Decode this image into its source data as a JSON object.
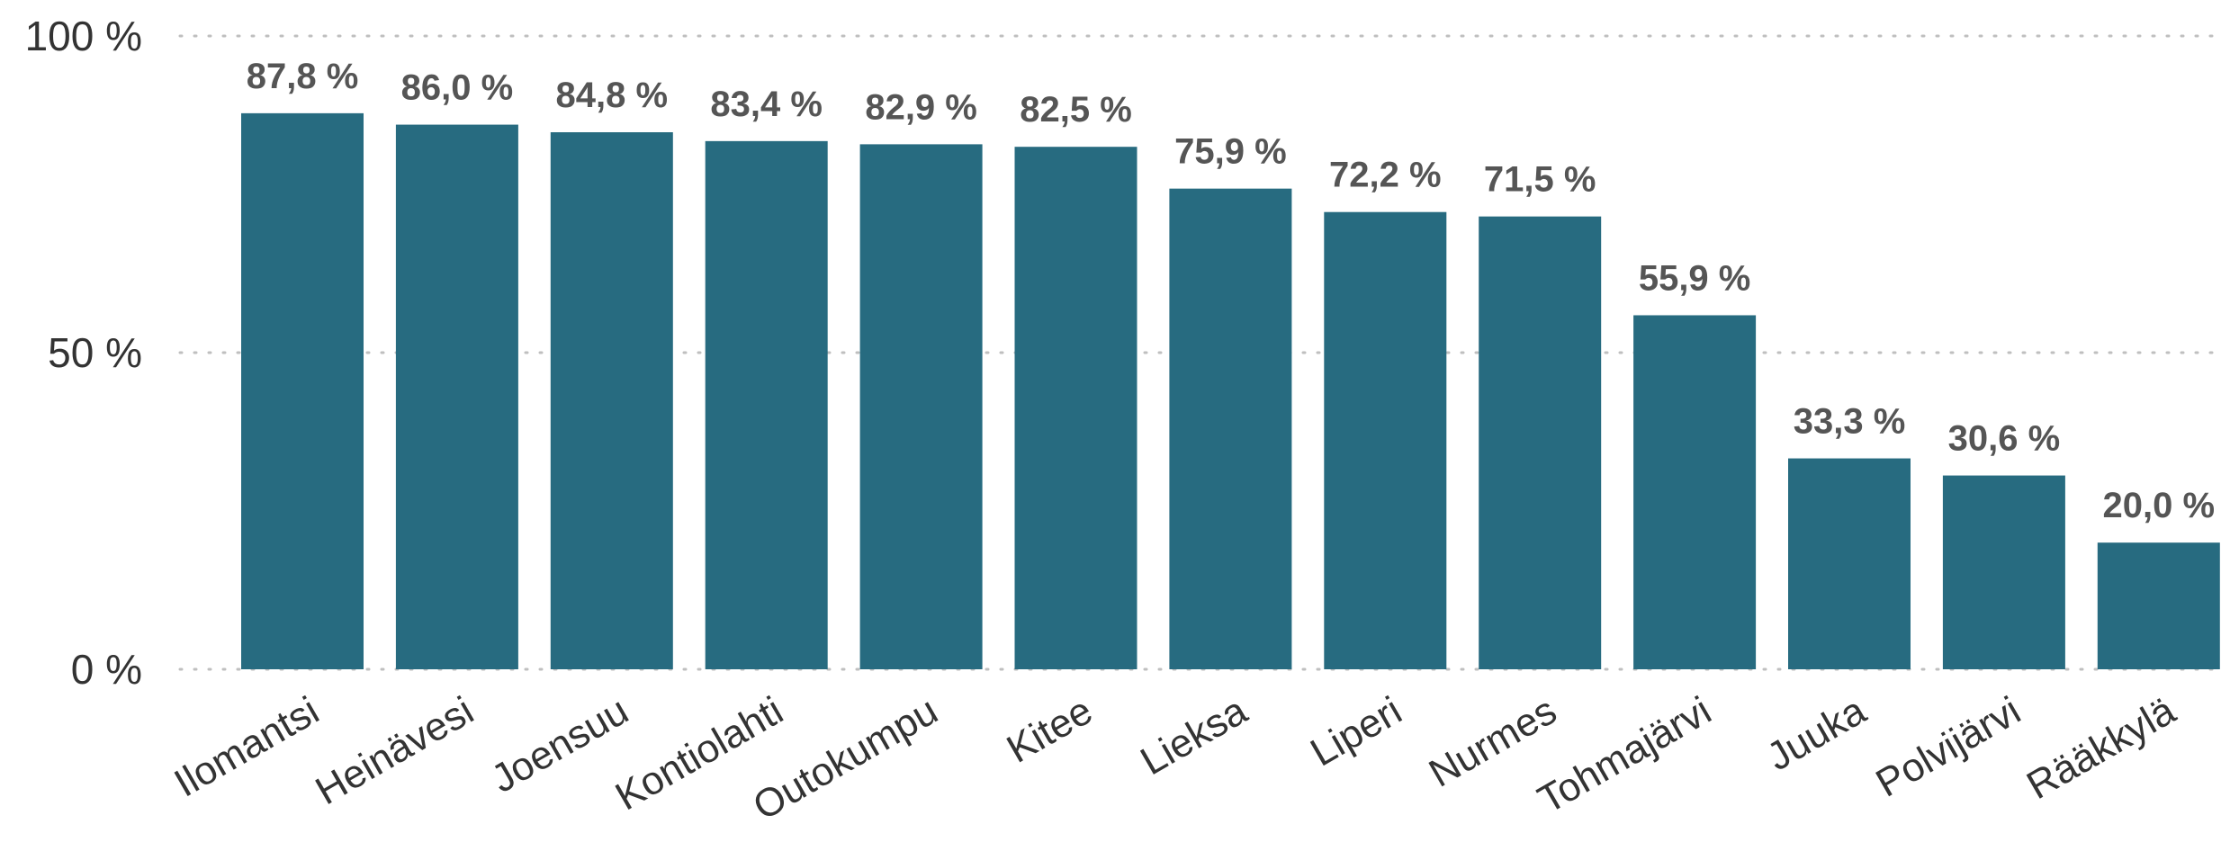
{
  "chart_data": {
    "type": "bar",
    "title": "",
    "xlabel": "",
    "ylabel": "",
    "categories": [
      "Ilomantsi",
      "Heinävesi",
      "Joensuu",
      "Kontiolahti",
      "Outokumpu",
      "Kitee",
      "Lieksa",
      "Liperi",
      "Nurmes",
      "Tohmajärvi",
      "Juuka",
      "Polvijärvi",
      "Rääkkylä"
    ],
    "values": [
      87.8,
      86.0,
      84.8,
      83.4,
      82.9,
      82.5,
      75.9,
      72.2,
      71.5,
      55.9,
      33.3,
      30.6,
      20.0
    ],
    "data_labels": [
      "87,8 %",
      "86,0 %",
      "84,8 %",
      "83,4 %",
      "82,9 %",
      "82,5 %",
      "75,9 %",
      "72,2 %",
      "71,5 %",
      "55,9 %",
      "33,3 %",
      "30,6 %",
      "20,0 %"
    ],
    "ylim": [
      0,
      100
    ],
    "yticks": [
      0,
      50,
      100
    ],
    "ytick_labels": [
      "0 %",
      "50 %",
      "100 %"
    ],
    "grid": true,
    "grid_style": "dotted",
    "legend": "none",
    "bar_color": "#276b80"
  }
}
